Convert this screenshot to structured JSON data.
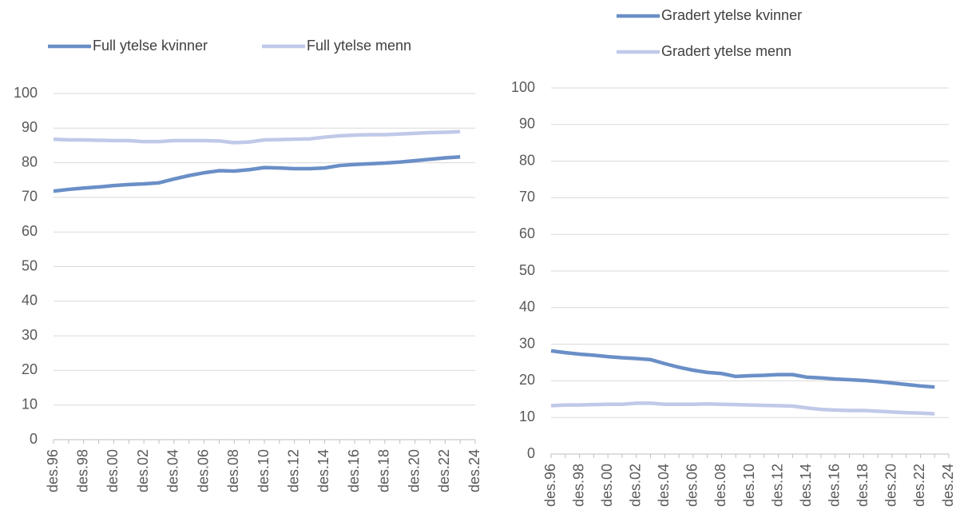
{
  "chart_data": [
    {
      "type": "line",
      "categories": [
        "des.96",
        null,
        "des.98",
        null,
        "des.00",
        null,
        "des.02",
        null,
        "des.04",
        null,
        "des.06",
        null,
        "des.08",
        null,
        "des.10",
        null,
        "des.12",
        null,
        "des.14",
        null,
        "des.16",
        null,
        "des.18",
        null,
        "des.20",
        null,
        "des.22",
        null,
        "des.24"
      ],
      "series": [
        {
          "name": "Full ytelse kvinner",
          "color": "#6a8fc7",
          "values": [
            71.8,
            72.3,
            72.7,
            73.0,
            73.4,
            73.7,
            73.9,
            74.2,
            75.3,
            76.3,
            77.1,
            77.7,
            77.6,
            78.0,
            78.6,
            78.5,
            78.3,
            78.3,
            78.5,
            79.2,
            79.5,
            79.7,
            79.9,
            80.2,
            80.6,
            81.0,
            81.4,
            81.7,
            null
          ]
        },
        {
          "name": "Full ytelse menn",
          "color": "#c0c9e8",
          "values": [
            86.8,
            86.6,
            86.6,
            86.5,
            86.4,
            86.4,
            86.1,
            86.1,
            86.4,
            86.4,
            86.4,
            86.3,
            85.8,
            86.0,
            86.6,
            86.7,
            86.8,
            86.9,
            87.4,
            87.8,
            88.0,
            88.1,
            88.1,
            88.3,
            88.5,
            88.7,
            88.8,
            89.0,
            null
          ]
        }
      ],
      "ylim": [
        0,
        100
      ],
      "yticks": [
        0,
        10,
        20,
        30,
        40,
        50,
        60,
        70,
        80,
        90,
        100
      ],
      "grid": true
    },
    {
      "type": "line",
      "categories": [
        "des.96",
        null,
        "des.98",
        null,
        "des.00",
        null,
        "des.02",
        null,
        "des.04",
        null,
        "des.06",
        null,
        "des.08",
        null,
        "des.10",
        null,
        "des.12",
        null,
        "des.14",
        null,
        "des.16",
        null,
        "des.18",
        null,
        "des.20",
        null,
        "des.22",
        null,
        "des.24"
      ],
      "series": [
        {
          "name": "Gradert ytelse kvinner",
          "color": "#6a8fc7",
          "values": [
            28.2,
            27.7,
            27.3,
            27.0,
            26.6,
            26.3,
            26.1,
            25.8,
            24.7,
            23.7,
            22.9,
            22.3,
            22.0,
            21.2,
            21.4,
            21.5,
            21.7,
            21.7,
            21.0,
            20.8,
            20.5,
            20.3,
            20.1,
            19.8,
            19.4,
            19.0,
            18.6,
            18.3,
            null
          ]
        },
        {
          "name": "Gradert ytelse menn",
          "color": "#c0c9e8",
          "values": [
            13.2,
            13.4,
            13.4,
            13.5,
            13.6,
            13.6,
            13.9,
            13.9,
            13.6,
            13.6,
            13.6,
            13.7,
            13.6,
            13.5,
            13.4,
            13.3,
            13.2,
            13.1,
            12.6,
            12.2,
            12.0,
            11.9,
            11.9,
            11.7,
            11.5,
            11.3,
            11.2,
            11.0,
            null
          ]
        }
      ],
      "ylim": [
        0,
        100
      ],
      "yticks": [
        0,
        10,
        20,
        30,
        40,
        50,
        60,
        70,
        80,
        90,
        100
      ],
      "grid": true
    }
  ]
}
